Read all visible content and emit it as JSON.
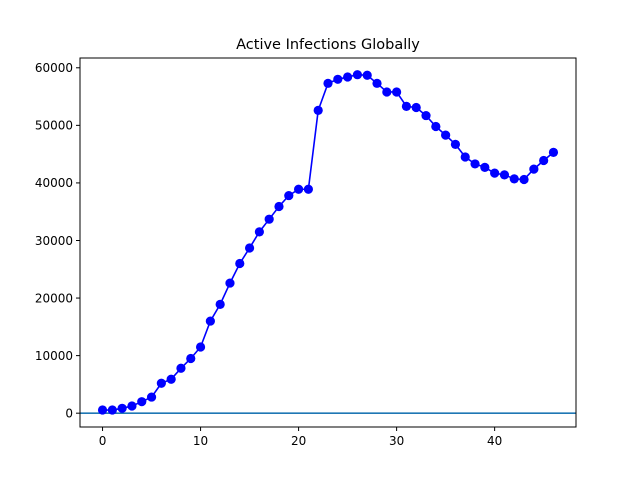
{
  "chart_data": {
    "type": "line",
    "title": "Active Infections Globally",
    "xlabel": "",
    "ylabel": "",
    "xlim": [
      -2.3,
      48.3
    ],
    "ylim": [
      -2400,
      61700
    ],
    "xticks": [
      0,
      10,
      20,
      30,
      40
    ],
    "yticks": [
      0,
      10000,
      20000,
      30000,
      40000,
      50000,
      60000
    ],
    "grid": false,
    "legend": "none",
    "series": [
      {
        "color": "#0000ff",
        "marker": "circle",
        "x": [
          0,
          1,
          2,
          3,
          4,
          5,
          6,
          7,
          8,
          9,
          10,
          11,
          12,
          13,
          14,
          15,
          16,
          17,
          18,
          19,
          20,
          21,
          22,
          23,
          24,
          25,
          26,
          27,
          28,
          29,
          30,
          31,
          32,
          33,
          34,
          35,
          36,
          37,
          38,
          39,
          40,
          41,
          42,
          43,
          44,
          45,
          46
        ],
        "y": [
          550,
          550,
          850,
          1250,
          2000,
          2800,
          5200,
          5900,
          7800,
          9500,
          11500,
          16000,
          18900,
          22600,
          26000,
          28700,
          31500,
          33700,
          35900,
          37800,
          38900,
          38900,
          52600,
          57300,
          58000,
          58400,
          58800,
          58700,
          57300,
          55800,
          55800,
          53300,
          53100,
          51700,
          49800,
          48300,
          46700,
          44500,
          43300,
          42700,
          41700,
          41400,
          40700,
          40600,
          42400,
          43900,
          45300
        ]
      }
    ],
    "reference_lines": [
      {
        "orientation": "horizontal",
        "y": 0,
        "color": "#1f77b4"
      }
    ]
  }
}
